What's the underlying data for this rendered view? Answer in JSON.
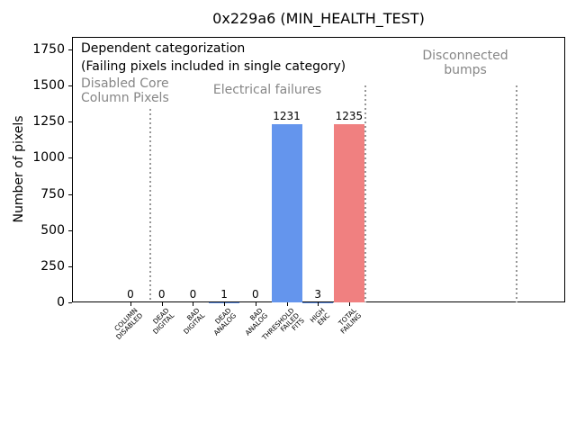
{
  "title": "0x229a6 (MIN_HEALTH_TEST)",
  "ylabel": "Number of pixels",
  "annotations": {
    "dependent_categorization": "Dependent categorization",
    "failing_note": "(Failing pixels included in single category)",
    "disabled_core": "Disabled Core\nColumn Pixels",
    "electrical_failures": "Electrical failures",
    "disconnected_bumps": "Disconnected\nbumps"
  },
  "colors": {
    "bar_blue": "#6495ED",
    "bar_red": "#F08080",
    "annotation_gray": "#868686",
    "separator_gray": "#979797",
    "text_black": "#000000",
    "background": "#ffffff"
  },
  "chart_data": {
    "type": "bar",
    "title": "0x229a6 (MIN_HEALTH_TEST)",
    "xlabel": "",
    "ylabel": "Number of pixels",
    "categories": [
      "COLUMN\nDISABLED",
      "DEAD\nDIGITAL",
      "BAD\nDIGITAL",
      "DEAD\nANALOG",
      "BAD\nANALOG",
      "THRESHOLD\nFAILED\nFITS",
      "HIGH\nENC",
      "TOTAL\nFAILING"
    ],
    "values": [
      0,
      0,
      0,
      1,
      0,
      1231,
      3,
      1235
    ],
    "value_labels": [
      "0",
      "0",
      "0",
      "1",
      "0",
      "1231",
      "3",
      "1235"
    ],
    "bar_colors": [
      "#6495ED",
      "#6495ED",
      "#6495ED",
      "#6495ED",
      "#6495ED",
      "#6495ED",
      "#6495ED",
      "#F08080"
    ],
    "yticks": [
      0,
      250,
      500,
      750,
      1000,
      1250,
      1500,
      1750
    ],
    "ylim": [
      0,
      1837
    ],
    "grid": false,
    "legend": null,
    "separators": [
      {
        "x": 0.6,
        "ytop": 1340
      },
      {
        "x": 7.5,
        "ytop": 1500
      },
      {
        "x": 12.33,
        "ytop": 1500
      }
    ]
  }
}
